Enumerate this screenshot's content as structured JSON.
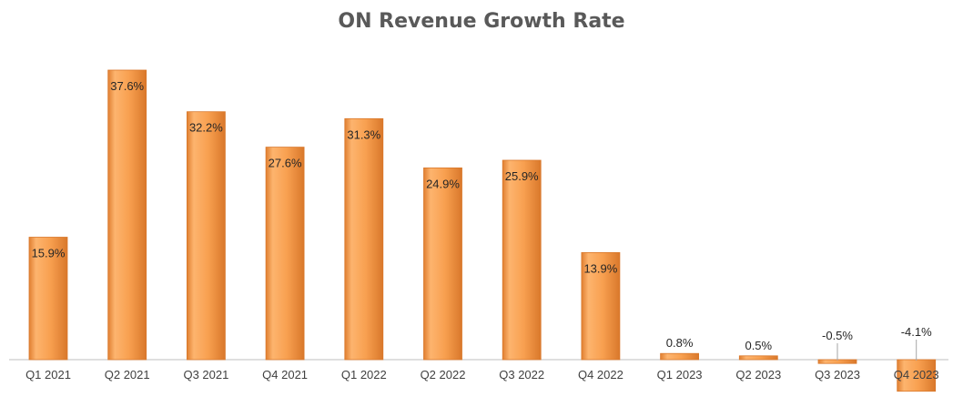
{
  "chart_data": {
    "type": "bar",
    "title": "ON Revenue Growth Rate",
    "categories": [
      "Q1 2021",
      "Q2 2021",
      "Q3 2021",
      "Q4 2021",
      "Q1 2022",
      "Q2 2022",
      "Q3 2022",
      "Q4 2022",
      "Q1 2023",
      "Q2 2023",
      "Q3 2023",
      "Q4 2023"
    ],
    "values": [
      15.9,
      37.6,
      32.2,
      27.6,
      31.3,
      24.9,
      25.9,
      13.9,
      0.8,
      0.5,
      -0.5,
      -4.1
    ],
    "data_labels": [
      "15.9%",
      "37.6%",
      "32.2%",
      "27.6%",
      "31.3%",
      "24.9%",
      "25.9%",
      "13.9%",
      "0.8%",
      "0.5%",
      "-0.5%",
      "-4.1%"
    ],
    "xlabel": "",
    "ylabel": "",
    "grid": false,
    "legend": "none",
    "colors": {
      "bar": "#F79646",
      "bar_light": "#FDB874",
      "bar_dark": "#D9782B",
      "axis": "#BFBFBF"
    }
  }
}
